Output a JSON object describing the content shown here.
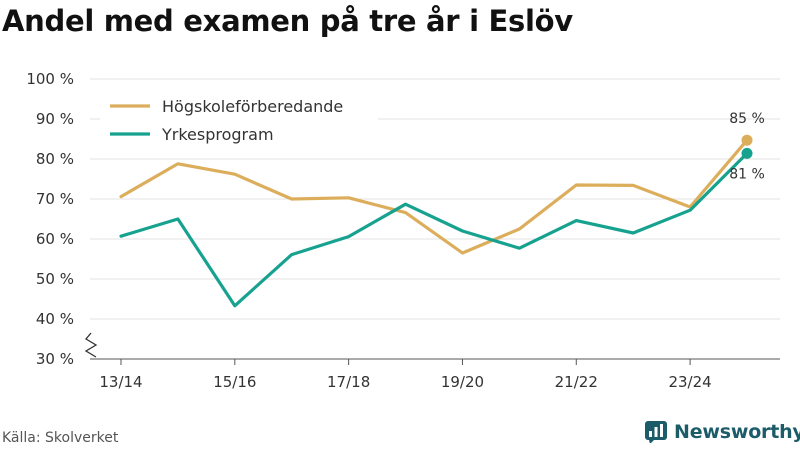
{
  "chart_data": {
    "type": "line",
    "title": "Andel med examen på tre år i Eslöv",
    "x": [
      "13/14",
      "14/15",
      "15/16",
      "16/17",
      "17/18",
      "18/19",
      "19/20",
      "20/21",
      "21/22",
      "22/23",
      "23/24",
      "24/25"
    ],
    "x_tick_labels": [
      "13/14",
      "15/16",
      "17/18",
      "19/20",
      "21/22",
      "23/24"
    ],
    "y_ticks": [
      30,
      40,
      50,
      60,
      70,
      80,
      90,
      100
    ],
    "y_tick_suffix": " %",
    "ylim": [
      30,
      100
    ],
    "series": [
      {
        "name": "Högskoleförberedande",
        "color": "#dcae5c",
        "values": [
          70.6,
          78.8,
          76.2,
          70.0,
          70.3,
          66.6,
          56.5,
          62.5,
          73.5,
          73.4,
          68.0,
          84.7
        ],
        "end_label": "85 %"
      },
      {
        "name": "Yrkesprogram",
        "color": "#17a290",
        "values": [
          60.7,
          65.0,
          43.3,
          56.1,
          60.6,
          68.7,
          62.0,
          57.7,
          64.6,
          61.5,
          67.2,
          81.4
        ],
        "end_label": "81 %"
      }
    ],
    "legend_position": "top-left",
    "grid": true,
    "axis_break": true
  },
  "source": "Källa: Skolverket",
  "brand": {
    "name": "Newsworthy",
    "color": "#1c5c69",
    "icon": "bar-chart-icon"
  }
}
